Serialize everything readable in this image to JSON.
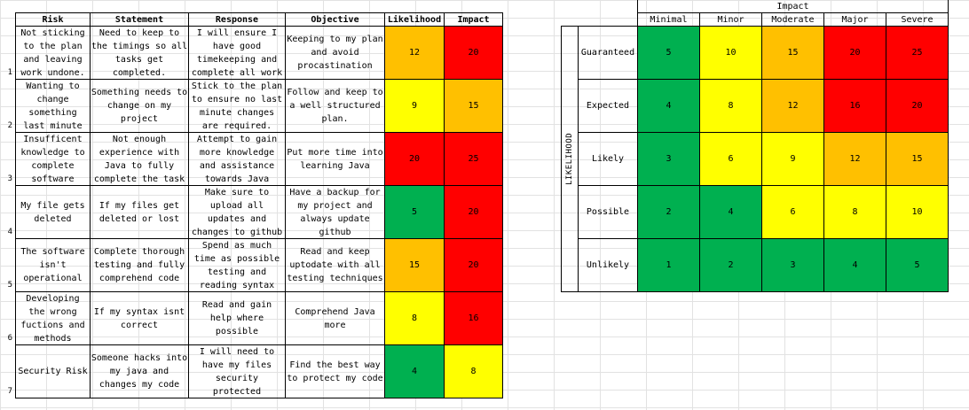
{
  "risk_table": {
    "headers": [
      "Risk",
      "Statement",
      "Response",
      "Objective",
      "Likelihood",
      "Impact"
    ],
    "rows": [
      {
        "num": "1",
        "risk": "Not sticking to the plan and leaving work undone.",
        "statement": "Need to keep to the timings so all tasks get completed.",
        "response": "I will ensure I have good timekeeping and complete all work",
        "objective": "Keeping to my plan and avoid procastination",
        "likelihood": "12",
        "impact": "20"
      },
      {
        "num": "2",
        "risk": "Wanting to change something last minute",
        "statement": "Something needs to change on my project",
        "response": "Stick to the plan to ensure no last minute changes are required.",
        "objective": "Follow and keep to a well structured plan.",
        "likelihood": "9",
        "impact": "15"
      },
      {
        "num": "3",
        "risk": "Insufficent knowledge to complete software",
        "statement": "Not enough experience with Java to fully complete the task",
        "response": "Attempt to gain more knowledge and assistance towards Java",
        "objective": "Put more time into learning Java",
        "likelihood": "20",
        "impact": "25"
      },
      {
        "num": "4",
        "risk": "My file gets deleted",
        "statement": "If my files get deleted or lost",
        "response": "Make sure to upload all updates and changes to github",
        "objective": "Have a backup for my project and always update github",
        "likelihood": "5",
        "impact": "20"
      },
      {
        "num": "5",
        "risk": "The software isn't operational",
        "statement": "Complete thorough testing and fully comprehend code",
        "response": "Spend as much time as possible testing and reading syntax",
        "objective": "Read and keep uptodate with all testing techniques",
        "likelihood": "15",
        "impact": "20"
      },
      {
        "num": "6",
        "risk": "Developing the wrong fuctions and methods",
        "statement": "If my syntax isnt correct",
        "response": "Read and gain help where possible",
        "objective": "Comprehend Java more",
        "likelihood": "8",
        "impact": "16"
      },
      {
        "num": "7",
        "risk": "Security Risk",
        "statement": "Someone hacks into my java and changes my code",
        "response": "I will need to have my files security protected",
        "objective": "Find the best way to protect my code",
        "likelihood": "4",
        "impact": "8"
      }
    ]
  },
  "matrix": {
    "impact_title": "Impact",
    "likelihood_title": "LIKELIHOOD",
    "impact_levels": [
      "Minimal",
      "Minor",
      "Moderate",
      "Major",
      "Severe"
    ],
    "likelihood_levels": [
      "Guaranteed",
      "Expected",
      "Likely",
      "Possible",
      "Unlikely"
    ],
    "values": [
      [
        "5",
        "10",
        "15",
        "20",
        "25"
      ],
      [
        "4",
        "8",
        "12",
        "16",
        "20"
      ],
      [
        "3",
        "6",
        "9",
        "12",
        "15"
      ],
      [
        "2",
        "4",
        "6",
        "8",
        "10"
      ],
      [
        "1",
        "2",
        "3",
        "4",
        "5"
      ]
    ]
  },
  "colors": {
    "green": "#00b050",
    "yellow": "#ffff00",
    "orange": "#ffc000",
    "red": "#ff0000"
  }
}
